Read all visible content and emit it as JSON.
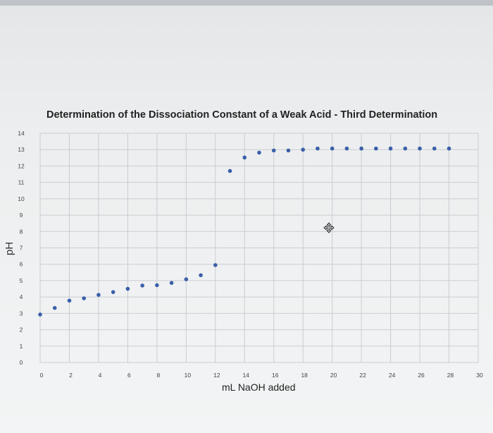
{
  "chart_data": {
    "type": "scatter",
    "title": "Determination of the Dissociation Constant of a Weak Acid - Third Determination",
    "xlabel": "mL NaOH added",
    "ylabel": "pH",
    "xlim": [
      0,
      30
    ],
    "ylim": [
      0,
      14
    ],
    "x_ticks": [
      0,
      2,
      4,
      6,
      8,
      10,
      12,
      14,
      16,
      18,
      20,
      22,
      24,
      26,
      28,
      30
    ],
    "y_ticks": [
      0,
      1,
      2,
      3,
      4,
      5,
      6,
      7,
      8,
      9,
      10,
      11,
      12,
      13,
      14
    ],
    "grid": true,
    "marker_color": "#3b5fa8",
    "series": [
      {
        "x": [
          0,
          1,
          2,
          3,
          4,
          5,
          6,
          7,
          8,
          9,
          10,
          11,
          12,
          13,
          14,
          15,
          16,
          17,
          18,
          19,
          20,
          21,
          22,
          23,
          24,
          25,
          26,
          27,
          28
        ],
        "y": [
          2.93,
          3.33,
          3.78,
          3.92,
          4.13,
          4.3,
          4.5,
          4.7,
          4.72,
          4.86,
          5.08,
          5.33,
          5.95,
          11.7,
          12.52,
          12.82,
          12.95,
          12.95,
          13.0,
          13.07,
          13.07,
          13.07,
          13.07,
          13.07,
          13.07,
          13.07,
          13.07,
          13.07,
          13.07
        ]
      }
    ]
  }
}
